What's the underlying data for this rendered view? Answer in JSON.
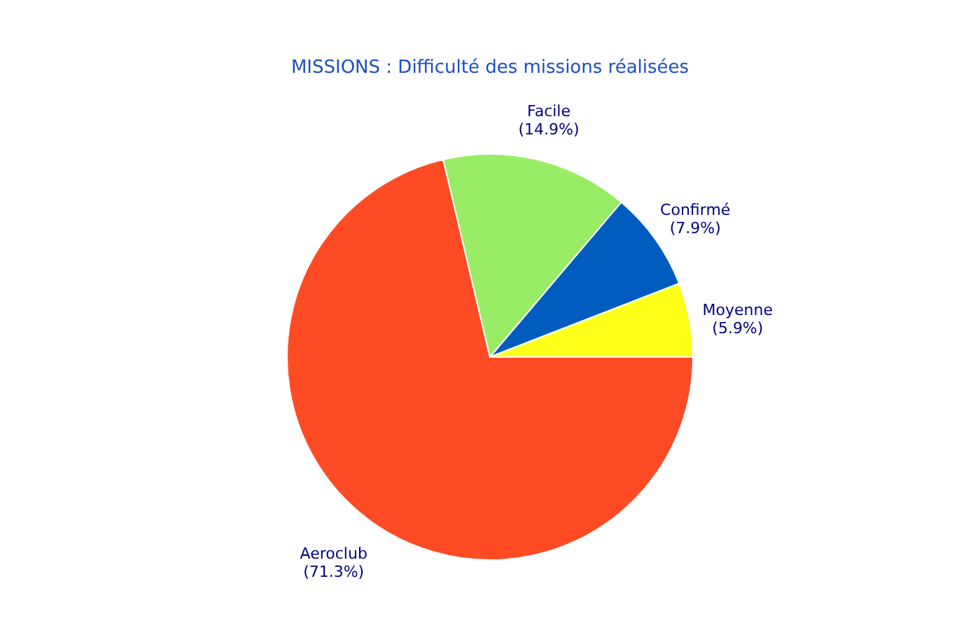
{
  "chart_data": {
    "type": "pie",
    "title": "MISSIONS : Difficulté des missions réalisées",
    "categories": [
      "Aeroclub",
      "Facile",
      "Confirmé",
      "Moyenne"
    ],
    "values": [
      71.3,
      14.9,
      7.9,
      5.9
    ],
    "colors": [
      "#ff4b24",
      "#99ec66",
      "#005cbf",
      "#ffff19"
    ],
    "value_labels": [
      "(71.3%)",
      "(14.9%)",
      "(7.9%)",
      "(5.9%)"
    ]
  }
}
